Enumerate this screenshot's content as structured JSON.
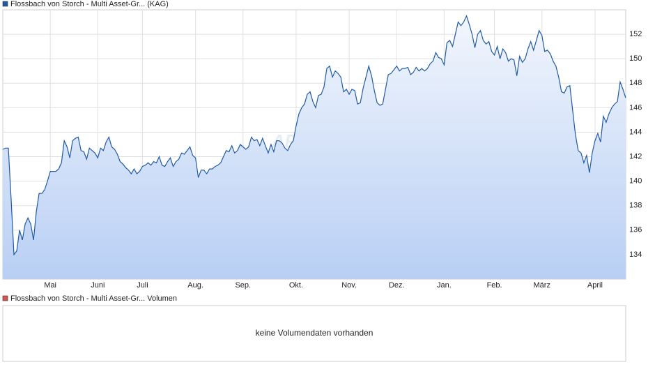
{
  "chart_data": {
    "type": "line",
    "series": [
      {
        "name": "Flossbach von Storch - Multi Asset-Gr... (KAG)",
        "color": "#1f5aa6",
        "values": [
          142.6,
          142.7,
          142.7,
          138.5,
          134,
          134.3,
          136,
          135.2,
          136.5,
          137,
          136.5,
          135.2,
          137.5,
          139,
          139,
          139.3,
          140,
          140.8,
          140.8,
          140.8,
          141,
          141.5,
          143.3,
          142.8,
          141.9,
          143.3,
          143.5,
          143.6,
          142.5,
          142.4,
          141.8,
          142.7,
          142.5,
          142.3,
          141.9,
          142.7,
          142.5,
          143.2,
          143.6,
          142.8,
          142.6,
          142.2,
          141.6,
          141.4,
          141.1,
          140.9,
          140.6,
          141,
          140.6,
          140.8,
          141.2,
          141.3,
          141.5,
          141.3,
          141.6,
          141.5,
          142,
          141.3,
          141.2,
          141.6,
          141.9,
          141.2,
          141.6,
          141.8,
          142.3,
          142.2,
          142.5,
          142.8,
          142.1,
          141.9,
          140.3,
          140.9,
          140.9,
          140.6,
          141,
          141,
          141.2,
          141.3,
          141.5,
          142,
          142.5,
          142.4,
          142.9,
          142.3,
          142.5,
          143,
          142.8,
          142.6,
          142.8,
          143.6,
          143.3,
          143.4,
          142.9,
          143.5,
          142.9,
          142.3,
          143,
          142.4,
          143.3,
          143.3,
          143.1,
          142.7,
          142.5,
          143,
          143.3,
          144.5,
          145.5,
          146,
          146.3,
          147.1,
          147.3,
          146.5,
          146,
          147,
          147.1,
          147.7,
          149.2,
          149.4,
          148.5,
          149,
          148.8,
          148.5,
          147.3,
          147.5,
          147.1,
          147.5,
          147.4,
          146.3,
          146.4,
          147.6,
          148.5,
          149.4,
          148.6,
          147.4,
          146.4,
          146.2,
          146.3,
          147.5,
          148.7,
          148.8,
          149.1,
          149.4,
          149,
          149.2,
          149.2,
          149.3,
          148.7,
          148.9,
          149.3,
          149,
          149.2,
          149,
          149.2,
          149.6,
          149.8,
          150.5,
          150.1,
          150,
          149.5,
          151.3,
          151.5,
          151,
          152,
          153,
          152.7,
          153,
          153.5,
          152.8,
          152,
          150.9,
          152,
          152.3,
          151.5,
          151.2,
          151.4,
          150.6,
          150.3,
          151,
          150,
          150.8,
          150.5,
          149.8,
          150,
          149.9,
          148.6,
          150.2,
          149.7,
          150,
          150.8,
          151.4,
          150.7,
          151.5,
          152.3,
          151.9,
          150.6,
          150.7,
          150.4,
          149.8,
          149.4,
          148.5,
          147.3,
          147.2,
          147.7,
          147.8,
          145.8,
          143.8,
          142.5,
          142.3,
          141.5,
          142.1,
          140.7,
          142.3,
          143.3,
          143.9,
          143.2,
          145.3,
          144.8,
          145.5,
          146,
          146.3,
          146.5,
          148.1,
          147.5,
          146.8
        ]
      }
    ],
    "categories": [
      null,
      null,
      null,
      null,
      null,
      null,
      null,
      null,
      null,
      null,
      null,
      null,
      null,
      null,
      null,
      null,
      null,
      "Mai",
      null,
      null,
      null,
      null,
      null,
      null,
      null,
      null,
      null,
      null,
      null,
      null,
      null,
      null,
      null,
      null,
      "Juni",
      null,
      null,
      null,
      null,
      null,
      null,
      null,
      null,
      null,
      null,
      null,
      null,
      null,
      null,
      null,
      "Juli",
      null,
      null,
      null,
      null,
      null,
      null,
      null,
      null,
      null,
      null,
      null,
      null,
      null,
      null,
      null,
      null,
      null,
      null,
      "Aug.",
      null,
      null,
      null,
      null,
      null,
      null,
      null,
      null,
      null,
      null,
      null,
      null,
      null,
      null,
      null,
      null,
      "Sep.",
      null,
      null,
      null,
      null,
      null,
      null,
      null,
      null,
      null,
      null,
      null,
      null,
      null,
      null,
      null,
      null,
      null,
      null,
      "Okt.",
      null,
      null,
      null,
      null,
      null,
      null,
      null,
      null,
      null,
      null,
      null,
      null,
      null,
      null,
      null,
      null,
      null,
      null,
      "Nov.",
      null,
      null,
      null,
      null,
      null,
      null,
      null,
      null,
      null,
      null,
      null,
      null,
      null,
      null,
      null,
      null,
      "Dez.",
      null,
      null,
      null,
      null,
      null,
      null,
      null,
      null,
      null,
      null,
      null,
      null,
      null,
      null,
      null,
      null,
      "Jan.",
      null,
      null,
      null,
      null,
      null,
      null,
      null,
      null,
      null,
      null,
      null,
      null,
      null,
      null,
      null,
      null,
      null,
      "Feb.",
      null,
      null,
      null,
      null,
      null,
      null,
      null,
      null,
      null,
      null,
      null,
      null,
      null,
      null,
      null,
      null,
      "März",
      null,
      null,
      null,
      null,
      null,
      null,
      null,
      null,
      null,
      null,
      null,
      null,
      null,
      null,
      null,
      null,
      null,
      null,
      "April",
      null,
      null,
      null,
      null,
      null,
      null,
      null,
      null,
      null,
      null,
      null
    ],
    "ylim": [
      132,
      154
    ],
    "yticks": [
      134,
      136,
      138,
      140,
      142,
      144,
      146,
      148,
      150,
      152
    ],
    "grid": true,
    "watermark": "ARIVA.DE",
    "volume_panel": {
      "name": "Flossbach von Storch - Multi Asset-Gr... Volumen",
      "color": "#d9534f",
      "message": "keine Volumendaten vorhanden"
    }
  }
}
